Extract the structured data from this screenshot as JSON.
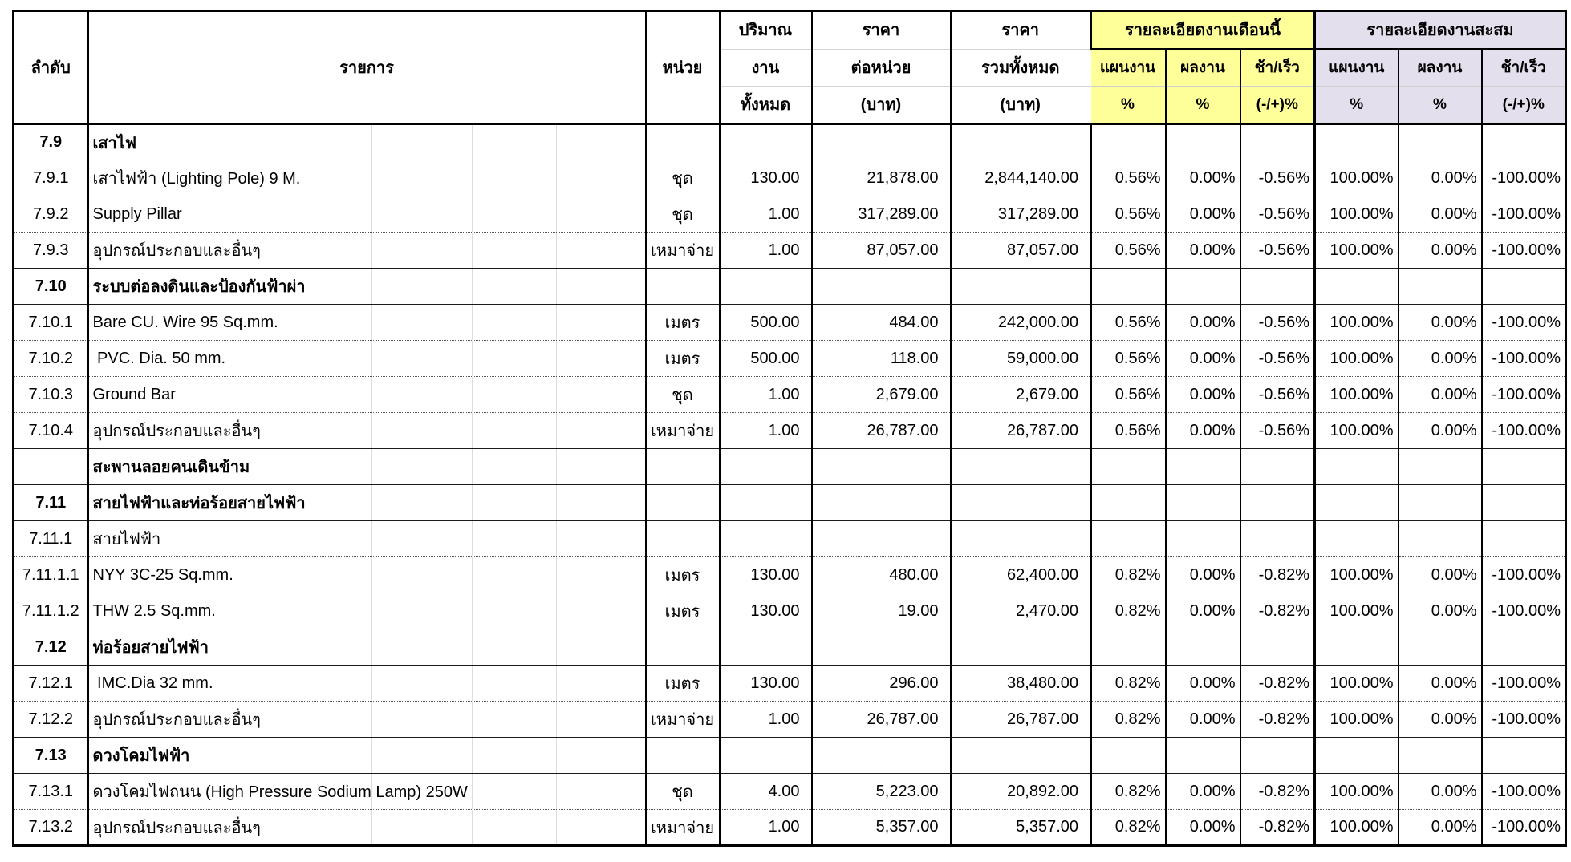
{
  "colors": {
    "month_group_bg": "#FFFF99",
    "cumulative_group_bg": "#E4DFEC",
    "border": "#000000",
    "faint_grid": "#D4D4D4"
  },
  "table": {
    "headers": {
      "no": "ลำดับ",
      "item": "รายการ",
      "unit": "หน่วย",
      "qty_lines": [
        "ปริมาณ",
        "งาน",
        "ทั้งหมด"
      ],
      "unit_price_lines": [
        "ราคา",
        "ต่อหน่วย",
        "(บาท)"
      ],
      "total_price_lines": [
        "ราคา",
        "รวมทั้งหมด",
        "(บาท)"
      ],
      "month_group": {
        "title": "รายละเอียดงานเดือนนี้",
        "plan": "แผนงาน",
        "actual": "ผลงาน",
        "diff": "ช้า/เร็ว",
        "plan_unit": "%",
        "actual_unit": "%",
        "diff_unit": "(-/+)%"
      },
      "cumulative_group": {
        "title": "รายละเอียดงานสะสม",
        "plan": "แผนงาน",
        "actual": "ผลงาน",
        "diff": "ช้า/เร็ว",
        "plan_unit": "%",
        "actual_unit": "%",
        "diff_unit": "(-/+)%"
      }
    },
    "rows": [
      {
        "no": "7.9",
        "item": "เสาไฟ",
        "section": true,
        "unit": "",
        "qty": "",
        "unit_price": "",
        "total_price": "",
        "m_plan": "",
        "m_actual": "",
        "m_diff": "",
        "c_plan": "",
        "c_actual": "",
        "c_diff": ""
      },
      {
        "no": "7.9.1",
        "item": "เสาไฟฟ้า (Lighting Pole) 9 M.",
        "section": false,
        "unit": "ชุด",
        "qty": "130.00",
        "unit_price": "21,878.00",
        "total_price": "2,844,140.00",
        "m_plan": "0.56%",
        "m_actual": "0.00%",
        "m_diff": "-0.56%",
        "c_plan": "100.00%",
        "c_actual": "0.00%",
        "c_diff": "-100.00%"
      },
      {
        "no": "7.9.2",
        "item": "Supply Pillar",
        "section": false,
        "unit": "ชุด",
        "qty": "1.00",
        "unit_price": "317,289.00",
        "total_price": "317,289.00",
        "m_plan": "0.56%",
        "m_actual": "0.00%",
        "m_diff": "-0.56%",
        "c_plan": "100.00%",
        "c_actual": "0.00%",
        "c_diff": "-100.00%"
      },
      {
        "no": "7.9.3",
        "item": "อุปกรณ์ประกอบและอื่นๆ",
        "section": false,
        "unit": "เหมาจ่าย",
        "qty": "1.00",
        "unit_price": "87,057.00",
        "total_price": "87,057.00",
        "m_plan": "0.56%",
        "m_actual": "0.00%",
        "m_diff": "-0.56%",
        "c_plan": "100.00%",
        "c_actual": "0.00%",
        "c_diff": "-100.00%"
      },
      {
        "no": "7.10",
        "item": "ระบบต่อลงดินและป้องกันฟ้าผ่า",
        "section": true,
        "unit": "",
        "qty": "",
        "unit_price": "",
        "total_price": "",
        "m_plan": "",
        "m_actual": "",
        "m_diff": "",
        "c_plan": "",
        "c_actual": "",
        "c_diff": ""
      },
      {
        "no": "7.10.1",
        "item": "Bare CU. Wire 95 Sq.mm.",
        "section": false,
        "unit": "เมตร",
        "qty": "500.00",
        "unit_price": "484.00",
        "total_price": "242,000.00",
        "m_plan": "0.56%",
        "m_actual": "0.00%",
        "m_diff": "-0.56%",
        "c_plan": "100.00%",
        "c_actual": "0.00%",
        "c_diff": "-100.00%"
      },
      {
        "no": "7.10.2",
        "item": " PVC. Dia. 50 mm.",
        "section": false,
        "unit": "เมตร",
        "qty": "500.00",
        "unit_price": "118.00",
        "total_price": "59,000.00",
        "m_plan": "0.56%",
        "m_actual": "0.00%",
        "m_diff": "-0.56%",
        "c_plan": "100.00%",
        "c_actual": "0.00%",
        "c_diff": "-100.00%"
      },
      {
        "no": "7.10.3",
        "item": "Ground Bar",
        "section": false,
        "unit": "ชุด",
        "qty": "1.00",
        "unit_price": "2,679.00",
        "total_price": "2,679.00",
        "m_plan": "0.56%",
        "m_actual": "0.00%",
        "m_diff": "-0.56%",
        "c_plan": "100.00%",
        "c_actual": "0.00%",
        "c_diff": "-100.00%"
      },
      {
        "no": "7.10.4",
        "item": "อุปกรณ์ประกอบและอื่นๆ",
        "section": false,
        "unit": "เหมาจ่าย",
        "qty": "1.00",
        "unit_price": "26,787.00",
        "total_price": "26,787.00",
        "m_plan": "0.56%",
        "m_actual": "0.00%",
        "m_diff": "-0.56%",
        "c_plan": "100.00%",
        "c_actual": "0.00%",
        "c_diff": "-100.00%"
      },
      {
        "no": "",
        "item": "สะพานลอยคนเดินข้าม",
        "section": true,
        "unit": "",
        "qty": "",
        "unit_price": "",
        "total_price": "",
        "m_plan": "",
        "m_actual": "",
        "m_diff": "",
        "c_plan": "",
        "c_actual": "",
        "c_diff": ""
      },
      {
        "no": "7.11",
        "item": "สายไฟฟ้าและท่อร้อยสายไฟฟ้า",
        "section": true,
        "unit": "",
        "qty": "",
        "unit_price": "",
        "total_price": "",
        "m_plan": "",
        "m_actual": "",
        "m_diff": "",
        "c_plan": "",
        "c_actual": "",
        "c_diff": ""
      },
      {
        "no": "7.11.1",
        "item": "สายไฟฟ้า",
        "section": false,
        "unit": "",
        "qty": "",
        "unit_price": "",
        "total_price": "",
        "m_plan": "",
        "m_actual": "",
        "m_diff": "",
        "c_plan": "",
        "c_actual": "",
        "c_diff": ""
      },
      {
        "no": "7.11.1.1",
        "item": "NYY 3C-25 Sq.mm.",
        "section": false,
        "unit": "เมตร",
        "qty": "130.00",
        "unit_price": "480.00",
        "total_price": "62,400.00",
        "m_plan": "0.82%",
        "m_actual": "0.00%",
        "m_diff": "-0.82%",
        "c_plan": "100.00%",
        "c_actual": "0.00%",
        "c_diff": "-100.00%"
      },
      {
        "no": "7.11.1.2",
        "item": "THW 2.5 Sq.mm.",
        "section": false,
        "unit": "เมตร",
        "qty": "130.00",
        "unit_price": "19.00",
        "total_price": "2,470.00",
        "m_plan": "0.82%",
        "m_actual": "0.00%",
        "m_diff": "-0.82%",
        "c_plan": "100.00%",
        "c_actual": "0.00%",
        "c_diff": "-100.00%"
      },
      {
        "no": "7.12",
        "item": "ท่อร้อยสายไฟฟ้า",
        "section": true,
        "unit": "",
        "qty": "",
        "unit_price": "",
        "total_price": "",
        "m_plan": "",
        "m_actual": "",
        "m_diff": "",
        "c_plan": "",
        "c_actual": "",
        "c_diff": ""
      },
      {
        "no": "7.12.1",
        "item": " IMC.Dia 32 mm.",
        "section": false,
        "unit": "เมตร",
        "qty": "130.00",
        "unit_price": "296.00",
        "total_price": "38,480.00",
        "m_plan": "0.82%",
        "m_actual": "0.00%",
        "m_diff": "-0.82%",
        "c_plan": "100.00%",
        "c_actual": "0.00%",
        "c_diff": "-100.00%"
      },
      {
        "no": "7.12.2",
        "item": "อุปกรณ์ประกอบและอื่นๆ",
        "section": false,
        "unit": "เหมาจ่าย",
        "qty": "1.00",
        "unit_price": "26,787.00",
        "total_price": "26,787.00",
        "m_plan": "0.82%",
        "m_actual": "0.00%",
        "m_diff": "-0.82%",
        "c_plan": "100.00%",
        "c_actual": "0.00%",
        "c_diff": "-100.00%"
      },
      {
        "no": "7.13",
        "item": "ดวงโคมไฟฟ้า",
        "section": true,
        "unit": "",
        "qty": "",
        "unit_price": "",
        "total_price": "",
        "m_plan": "",
        "m_actual": "",
        "m_diff": "",
        "c_plan": "",
        "c_actual": "",
        "c_diff": ""
      },
      {
        "no": "7.13.1",
        "item": "ดวงโคมไฟถนน (High Pressure Sodium Lamp) 250W",
        "section": false,
        "unit": "ชุด",
        "qty": "4.00",
        "unit_price": "5,223.00",
        "total_price": "20,892.00",
        "m_plan": "0.82%",
        "m_actual": "0.00%",
        "m_diff": "-0.82%",
        "c_plan": "100.00%",
        "c_actual": "0.00%",
        "c_diff": "-100.00%"
      },
      {
        "no": "7.13.2",
        "item": "อุปกรณ์ประกอบและอื่นๆ",
        "section": false,
        "unit": "เหมาจ่าย",
        "qty": "1.00",
        "unit_price": "5,357.00",
        "total_price": "5,357.00",
        "m_plan": "0.82%",
        "m_actual": "0.00%",
        "m_diff": "-0.82%",
        "c_plan": "100.00%",
        "c_actual": "0.00%",
        "c_diff": "-100.00%"
      }
    ]
  }
}
